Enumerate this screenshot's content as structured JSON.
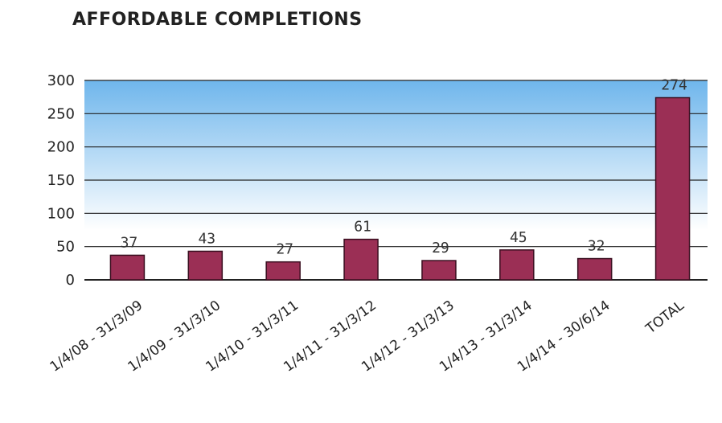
{
  "chart_data": {
    "type": "bar",
    "title": "AFFORDABLE COMPLETIONS",
    "categories": [
      "1/4/08 - 31/3/09",
      "1/4/09 - 31/3/10",
      "1/4/10 - 31/3/11",
      "1/4/11 - 31/3/12",
      "1/4/12 - 31/3/13",
      "1/4/13 - 31/3/14",
      "1/4/14 - 30/6/14",
      "TOTAL"
    ],
    "values": [
      37,
      43,
      27,
      61,
      29,
      45,
      32,
      274
    ],
    "data_labels": [
      "37",
      "43",
      "27",
      "61",
      "29",
      "45",
      "32",
      "274"
    ],
    "ylim": [
      0,
      300
    ],
    "yticks": [
      "0",
      "50",
      "100",
      "150",
      "200",
      "250",
      "300"
    ],
    "grid": true,
    "xlabel": "",
    "ylabel": "",
    "colors": {
      "bar": "#9b2f55",
      "bar_edge": "#3a0f20",
      "bg_top": "#6fb6ec",
      "bg_bottom": "#ffffff"
    }
  }
}
